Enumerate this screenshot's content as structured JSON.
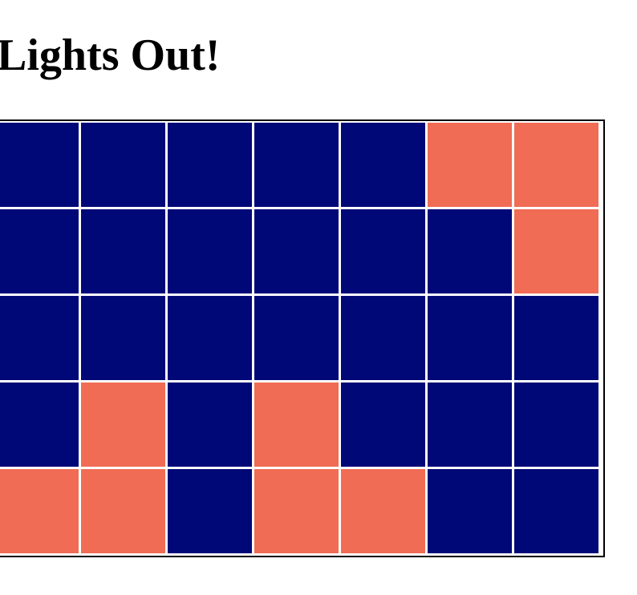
{
  "title": "Lights Out!",
  "colors": {
    "off": "#000878",
    "on": "#f06c55",
    "grid_line": "#ffffff",
    "frame": "#000000"
  },
  "board": {
    "rows": 5,
    "cols": 7,
    "cells": [
      [
        0,
        0,
        0,
        0,
        0,
        1,
        1
      ],
      [
        0,
        0,
        0,
        0,
        0,
        0,
        1
      ],
      [
        0,
        0,
        0,
        0,
        0,
        0,
        0
      ],
      [
        0,
        1,
        0,
        1,
        0,
        0,
        0
      ],
      [
        1,
        1,
        0,
        1,
        1,
        0,
        0
      ]
    ]
  }
}
